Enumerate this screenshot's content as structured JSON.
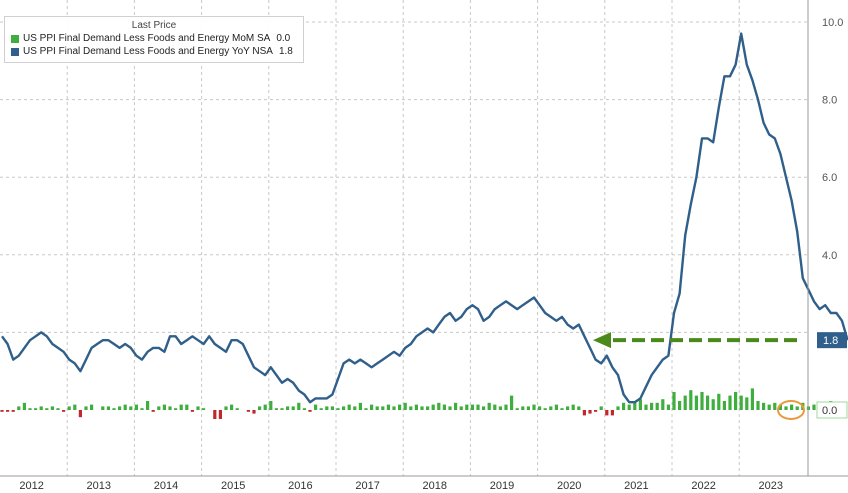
{
  "legend": {
    "title": "Last Price",
    "items": [
      {
        "label": "US PPI Final Demand Less Foods and Energy MoM SA",
        "value": "0.0",
        "color": "#3fae3f"
      },
      {
        "label": "US PPI Final Demand Less Foods and Energy YoY NSA",
        "value": "1.8",
        "color": "#2f5f8a"
      }
    ]
  },
  "colors": {
    "yoy_line": "#2f5f8a",
    "mom_positive": "#3fae3f",
    "mom_negative": "#c0282d",
    "arrow": "#4a8a1a",
    "highlight_circle": "#e89a3c",
    "grid": "#c8c8c8"
  },
  "chart_data": {
    "type": "bar+line",
    "x_years": [
      "2012",
      "2013",
      "2014",
      "2015",
      "2016",
      "2017",
      "2018",
      "2019",
      "2020",
      "2021",
      "2022",
      "2023"
    ],
    "y_ticks": [
      "10.0",
      "8.0",
      "6.0",
      "4.0",
      "1.8",
      "0.0"
    ],
    "ylim": [
      -1.2,
      10.4
    ],
    "grid": true,
    "legend_position": "top-left",
    "last_values": {
      "yoy": "1.8",
      "mom": "0.0"
    },
    "series": [
      {
        "name": "US PPI Final Demand Less Foods and Energy YoY NSA",
        "kind": "line",
        "start": "2012-01",
        "frequency": "monthly",
        "values": [
          1.9,
          1.7,
          1.3,
          1.4,
          1.6,
          1.8,
          1.9,
          2.0,
          1.9,
          1.7,
          1.6,
          1.5,
          1.3,
          1.2,
          1.0,
          1.3,
          1.6,
          1.7,
          1.8,
          1.8,
          1.7,
          1.6,
          1.7,
          1.6,
          1.4,
          1.3,
          1.5,
          1.6,
          1.6,
          1.5,
          1.9,
          1.9,
          1.7,
          1.8,
          1.9,
          1.8,
          1.7,
          1.9,
          1.7,
          1.6,
          1.5,
          1.8,
          1.8,
          1.7,
          1.4,
          1.1,
          1.0,
          0.9,
          1.1,
          0.9,
          0.7,
          0.8,
          0.7,
          0.5,
          0.4,
          0.2,
          0.3,
          0.3,
          0.3,
          0.4,
          0.8,
          1.2,
          1.3,
          1.2,
          1.3,
          1.2,
          1.1,
          1.2,
          1.3,
          1.4,
          1.5,
          1.4,
          1.6,
          1.7,
          1.9,
          2.0,
          2.1,
          2.0,
          2.2,
          2.4,
          2.5,
          2.3,
          2.4,
          2.6,
          2.7,
          2.6,
          2.3,
          2.4,
          2.6,
          2.7,
          2.8,
          2.7,
          2.6,
          2.7,
          2.8,
          2.9,
          2.7,
          2.5,
          2.4,
          2.3,
          2.4,
          2.2,
          2.1,
          2.2,
          1.9,
          1.6,
          1.3,
          1.2,
          1.4,
          1.1,
          0.9,
          0.4,
          0.2,
          0.2,
          0.3,
          0.6,
          0.9,
          1.1,
          1.3,
          1.4,
          2.5,
          3.0,
          4.5,
          5.3,
          6.0,
          7.0,
          7.0,
          6.9,
          7.8,
          8.6,
          8.6,
          8.9,
          9.7,
          8.9,
          8.5,
          8.0,
          7.4,
          7.1,
          7.0,
          6.6,
          6.0,
          5.4,
          4.6,
          3.4,
          3.1,
          2.8,
          2.6,
          2.7,
          2.5,
          2.5,
          2.3,
          1.8
        ]
      },
      {
        "name": "US PPI Final Demand Less Foods and Energy MoM SA",
        "kind": "bar",
        "start": "2012-01",
        "frequency": "monthly",
        "values": [
          -0.1,
          -0.1,
          -0.1,
          0.2,
          0.4,
          0.1,
          0.1,
          0.2,
          0.1,
          0.2,
          0.1,
          -0.1,
          0.2,
          0.3,
          -0.4,
          0.2,
          0.3,
          0.0,
          0.2,
          0.2,
          0.1,
          0.2,
          0.3,
          0.2,
          0.3,
          0.1,
          0.5,
          -0.1,
          0.2,
          0.3,
          0.2,
          0.1,
          0.3,
          0.3,
          -0.1,
          0.2,
          0.1,
          0.0,
          -0.5,
          -0.5,
          0.2,
          0.3,
          0.1,
          0.0,
          -0.1,
          -0.2,
          0.2,
          0.3,
          0.5,
          0.1,
          0.1,
          0.2,
          0.2,
          0.4,
          0.1,
          -0.1,
          0.3,
          0.1,
          0.2,
          0.2,
          0.1,
          0.2,
          0.3,
          0.2,
          0.4,
          0.1,
          0.3,
          0.2,
          0.2,
          0.3,
          0.2,
          0.3,
          0.4,
          0.2,
          0.3,
          0.2,
          0.2,
          0.3,
          0.4,
          0.3,
          0.2,
          0.4,
          0.2,
          0.3,
          0.3,
          0.3,
          0.2,
          0.4,
          0.3,
          0.2,
          0.3,
          0.8,
          0.1,
          0.2,
          0.2,
          0.3,
          0.2,
          0.1,
          0.2,
          0.3,
          0.1,
          0.2,
          0.3,
          0.2,
          -0.3,
          -0.2,
          -0.1,
          0.2,
          -0.3,
          -0.3,
          0.2,
          0.4,
          0.3,
          0.4,
          0.6,
          0.3,
          0.4,
          0.4,
          0.6,
          0.3,
          1.0,
          0.5,
          0.8,
          1.1,
          0.8,
          1.0,
          0.8,
          0.6,
          0.9,
          0.5,
          0.8,
          1.0,
          0.8,
          0.7,
          1.2,
          0.5,
          0.4,
          0.3,
          0.4,
          0.3,
          0.2,
          0.3,
          0.2,
          0.4,
          0.2,
          0.3,
          0.2,
          0.2,
          0.5,
          0.2,
          0.1,
          0.0
        ]
      }
    ]
  }
}
